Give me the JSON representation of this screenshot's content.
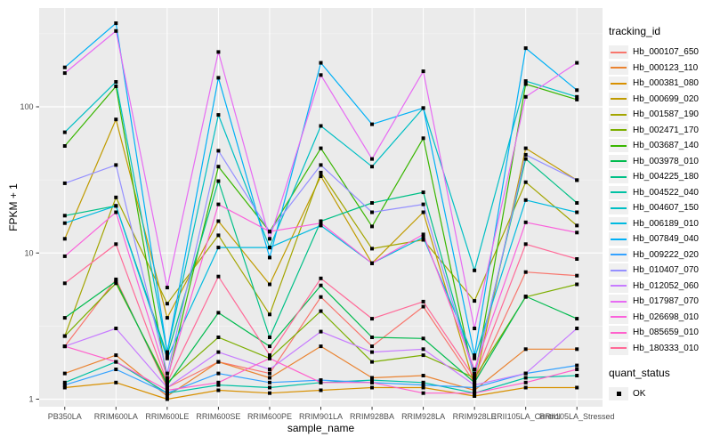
{
  "figure": {
    "y_axis_title": "FPKM + 1",
    "x_axis_title": "sample_name",
    "legend_title": "tracking_id",
    "quant_legend_title": "quant_status",
    "quant_legend_items": [
      "OK"
    ]
  },
  "style": {
    "panel_bg": "#EBEBEB",
    "grid_major_color": "#FFFFFF",
    "grid_minor_color": "#FFFFFF",
    "tick_color": "#333333",
    "tick_label_color": "#4D4D4D",
    "point_color": "#000000",
    "legend_key_bg": "#F0F0F0"
  },
  "chart_data": {
    "type": "line",
    "title": "",
    "xlabel": "sample_name",
    "ylabel": "FPKM + 1",
    "y_scale": "log10",
    "y_ticks": [
      1,
      10,
      100
    ],
    "y_minor_ticks": [
      3.1623,
      31.623,
      316.23
    ],
    "ylim": [
      0.95,
      460
    ],
    "grid": true,
    "legend_position": "right",
    "point_shape": "filled-black-square",
    "quant_status": "OK",
    "categories": [
      "PB350LA",
      "RRIM600LA",
      "RRIM600LE",
      "RRIM600SE",
      "RRIM600PE",
      "RRIM901LA",
      "RRIM928BA",
      "RRIM928LA",
      "RRIM928LE",
      "RRII105LA_Control",
      "RRII105LA_Stressed"
    ],
    "series": [
      {
        "tracking_id": "Hb_000107_650",
        "color": "#F8766D",
        "values": [
          2.3,
          6.6,
          1.2,
          1.8,
          1.5,
          5.0,
          2.3,
          4.3,
          1.3,
          7.4,
          7.0
        ]
      },
      {
        "tracking_id": "Hb_000123_110",
        "color": "#EA8331",
        "values": [
          1.5,
          2.0,
          1.05,
          1.8,
          1.4,
          2.3,
          1.4,
          1.45,
          1.15,
          2.2,
          2.2
        ]
      },
      {
        "tracking_id": "Hb_000381_080",
        "color": "#D89000",
        "values": [
          1.2,
          1.3,
          1.0,
          1.15,
          1.1,
          1.15,
          1.2,
          1.2,
          1.05,
          1.2,
          1.2
        ]
      },
      {
        "tracking_id": "Hb_000699_020",
        "color": "#C09B00",
        "values": [
          12.5,
          82,
          3.6,
          16.5,
          6.1,
          33.5,
          8.5,
          19,
          1.25,
          52,
          31.5
        ]
      },
      {
        "tracking_id": "Hb_001587_190",
        "color": "#A3A500",
        "values": [
          2.7,
          24,
          4.5,
          13.2,
          3.8,
          35.5,
          10.7,
          12.3,
          4.7,
          30.5,
          15.4
        ]
      },
      {
        "tracking_id": "Hb_002471_170",
        "color": "#7CAE00",
        "values": [
          2.7,
          6.2,
          1.3,
          2.65,
          1.9,
          4.0,
          1.8,
          2.0,
          1.4,
          5.0,
          6.1
        ]
      },
      {
        "tracking_id": "Hb_003687_140",
        "color": "#39B600",
        "values": [
          54,
          138,
          1.35,
          39,
          14,
          52,
          15.2,
          61,
          1.35,
          143,
          112
        ]
      },
      {
        "tracking_id": "Hb_003978_010",
        "color": "#00BB4E",
        "values": [
          3.6,
          6.4,
          1.25,
          3.9,
          2.3,
          6.0,
          2.65,
          2.6,
          1.3,
          5.05,
          3.55
        ]
      },
      {
        "tracking_id": "Hb_004225_180",
        "color": "#00C087",
        "values": [
          18,
          21,
          2.0,
          31,
          2.65,
          16.5,
          22,
          26,
          1.5,
          44,
          22
        ]
      },
      {
        "tracking_id": "Hb_004522_040",
        "color": "#00C1A3",
        "values": [
          1.3,
          1.8,
          1.1,
          1.25,
          1.2,
          1.3,
          1.35,
          1.3,
          1.1,
          1.4,
          1.45
        ]
      },
      {
        "tracking_id": "Hb_004607_150",
        "color": "#00BFC4",
        "values": [
          67,
          148,
          2.1,
          88,
          10.9,
          74,
          39,
          98,
          7.6,
          150,
          117
        ]
      },
      {
        "tracking_id": "Hb_006189_010",
        "color": "#00BAE0",
        "values": [
          16,
          21,
          1.9,
          10.9,
          10.9,
          15.4,
          8.5,
          12.8,
          1.9,
          23,
          19
        ]
      },
      {
        "tracking_id": "Hb_007849_040",
        "color": "#00B0F6",
        "values": [
          186,
          373,
          2.1,
          158,
          9.3,
          200,
          76,
          98,
          2.0,
          252,
          130
        ]
      },
      {
        "tracking_id": "Hb_009222_020",
        "color": "#35A2FF",
        "values": [
          1.25,
          1.6,
          1.1,
          1.5,
          1.3,
          1.35,
          1.3,
          1.25,
          1.2,
          1.5,
          1.7
        ]
      },
      {
        "tracking_id": "Hb_010407_070",
        "color": "#9590FF",
        "values": [
          30,
          40,
          1.5,
          50,
          14,
          40,
          19,
          21.5,
          1.45,
          47,
          31.5
        ]
      },
      {
        "tracking_id": "Hb_012052_060",
        "color": "#C77CFF",
        "values": [
          2.3,
          3.05,
          1.2,
          2.1,
          1.6,
          2.9,
          2.1,
          2.2,
          1.25,
          1.5,
          3.05
        ]
      },
      {
        "tracking_id": "Hb_017987_070",
        "color": "#E76BF3",
        "values": [
          170,
          330,
          5.8,
          237,
          12.5,
          165,
          44,
          175,
          3.05,
          117,
          200
        ]
      },
      {
        "tracking_id": "Hb_026698_010",
        "color": "#FA62DB",
        "values": [
          9.5,
          19,
          1.4,
          21.5,
          14,
          16,
          8.5,
          13.4,
          1.6,
          16.2,
          13.8
        ]
      },
      {
        "tracking_id": "Hb_085659_010",
        "color": "#FF61CC",
        "values": [
          2.3,
          1.8,
          1.15,
          1.3,
          1.9,
          1.3,
          1.3,
          1.1,
          1.1,
          1.3,
          1.6
        ]
      },
      {
        "tracking_id": "Hb_180333_010",
        "color": "#FF6A98",
        "values": [
          6.2,
          11.5,
          1.3,
          6.9,
          2.0,
          6.7,
          3.55,
          4.65,
          1.4,
          11.5,
          9.1
        ]
      }
    ]
  }
}
